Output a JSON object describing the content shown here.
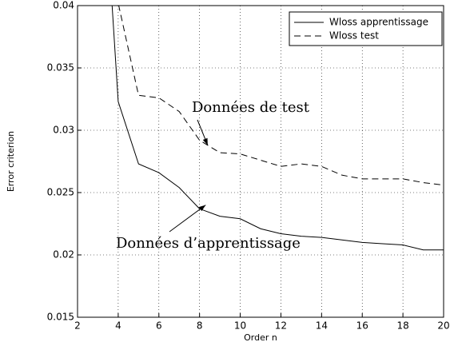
{
  "chart_data": {
    "type": "line",
    "xlabel": "Order n",
    "ylabel": "Error criterion",
    "x": [
      3,
      4,
      5,
      6,
      7,
      8,
      9,
      10,
      11,
      12,
      13,
      14,
      15,
      16,
      17,
      18,
      19,
      20
    ],
    "series": [
      {
        "name": "Wloss apprentissage",
        "color": "#000000",
        "dash": "solid",
        "values": [
          0.058,
          0.0323,
          0.0273,
          0.0266,
          0.0254,
          0.0237,
          0.0231,
          0.0229,
          0.0221,
          0.0217,
          0.0215,
          0.0214,
          0.0212,
          0.021,
          0.0209,
          0.0208,
          0.0204,
          0.0204
        ]
      },
      {
        "name": "Wloss test",
        "color": "#000000",
        "dash": "dashed",
        "values": [
          0.06,
          0.0402,
          0.0328,
          0.0326,
          0.0315,
          0.0292,
          0.0282,
          0.0281,
          0.0276,
          0.0271,
          0.0273,
          0.0271,
          0.0264,
          0.0261,
          0.0261,
          0.0261,
          0.0258,
          0.0256
        ]
      }
    ],
    "xlim": [
      2,
      20
    ],
    "xticks": [
      2,
      4,
      6,
      8,
      10,
      12,
      14,
      16,
      18,
      20
    ],
    "ylim": [
      0.015,
      0.04
    ],
    "yticks": [
      0.015,
      0.02,
      0.025,
      0.03,
      0.035,
      0.04
    ],
    "grid": true,
    "legend": "upper right",
    "annotations": [
      {
        "text": "Données de test",
        "x": 8.4,
        "y": 0.0288
      },
      {
        "text": "Données d’apprentissage",
        "x": 8.3,
        "y": 0.024
      }
    ]
  }
}
